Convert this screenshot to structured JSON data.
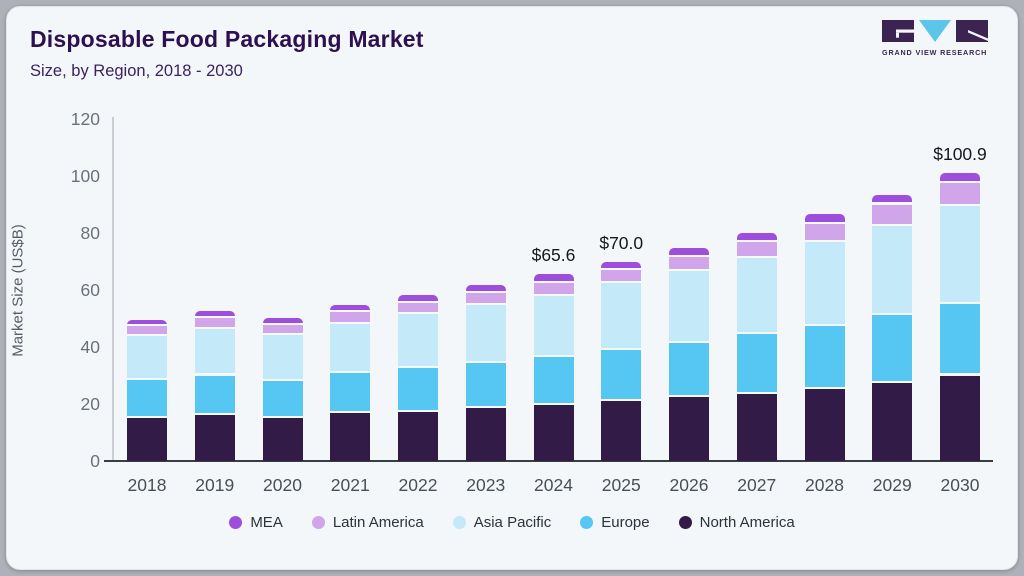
{
  "header": {
    "title": "Disposable Food Packaging Market",
    "subtitle": "Size, by Region, 2018 - 2030"
  },
  "logo": {
    "text": "GRAND VIEW RESEARCH",
    "dark_color": "#3b2352",
    "blue_color": "#5bc6ea"
  },
  "chart_data": {
    "type": "bar",
    "stacked": true,
    "title": "Disposable Food Packaging Market Size, by Region, 2018 - 2030",
    "xlabel": "",
    "ylabel": "Market Size (US$B)",
    "ylim": [
      0,
      120
    ],
    "yticks": [
      0,
      20,
      40,
      60,
      80,
      100,
      120
    ],
    "grid": false,
    "legend_position": "bottom",
    "categories": [
      "2018",
      "2019",
      "2020",
      "2021",
      "2022",
      "2023",
      "2024",
      "2025",
      "2026",
      "2027",
      "2028",
      "2029",
      "2030"
    ],
    "series": [
      {
        "name": "North America",
        "color": "#321b47",
        "values": [
          15.2,
          16.2,
          15.0,
          16.8,
          17.3,
          18.5,
          19.7,
          20.9,
          22.6,
          23.5,
          25.3,
          27.3,
          30.0
        ]
      },
      {
        "name": "Europe",
        "color": "#56c7f2",
        "values": [
          13.2,
          13.8,
          13.2,
          14.1,
          15.3,
          15.9,
          16.8,
          18.2,
          18.8,
          20.9,
          22.1,
          23.9,
          25.1
        ]
      },
      {
        "name": "Asia Pacific",
        "color": "#c4e9f9",
        "values": [
          15.5,
          16.4,
          15.9,
          17.2,
          19.0,
          20.5,
          21.3,
          23.4,
          25.4,
          26.8,
          29.3,
          31.2,
          34.5
        ]
      },
      {
        "name": "Latin America",
        "color": "#d0a5e9",
        "values": [
          3.4,
          3.9,
          3.7,
          4.2,
          3.8,
          3.9,
          4.7,
          4.5,
          4.7,
          5.6,
          6.5,
          7.6,
          7.8
        ]
      },
      {
        "name": "MEA",
        "color": "#9d4edd",
        "values": [
          2.2,
          2.4,
          2.3,
          2.6,
          2.8,
          3.0,
          3.1,
          3.0,
          3.3,
          3.2,
          3.3,
          3.5,
          3.5
        ]
      }
    ],
    "annotations": [
      {
        "category": "2024",
        "label": "$65.6"
      },
      {
        "category": "2025",
        "label": "$70.0"
      },
      {
        "category": "2030",
        "label": "$100.9"
      }
    ]
  },
  "legend": {
    "items": [
      {
        "label": "MEA",
        "color": "#9d4edd"
      },
      {
        "label": "Latin America",
        "color": "#d0a5e9"
      },
      {
        "label": "Asia Pacific",
        "color": "#c4e9f9"
      },
      {
        "label": "Europe",
        "color": "#56c7f2"
      },
      {
        "label": "North America",
        "color": "#321b47"
      }
    ]
  }
}
